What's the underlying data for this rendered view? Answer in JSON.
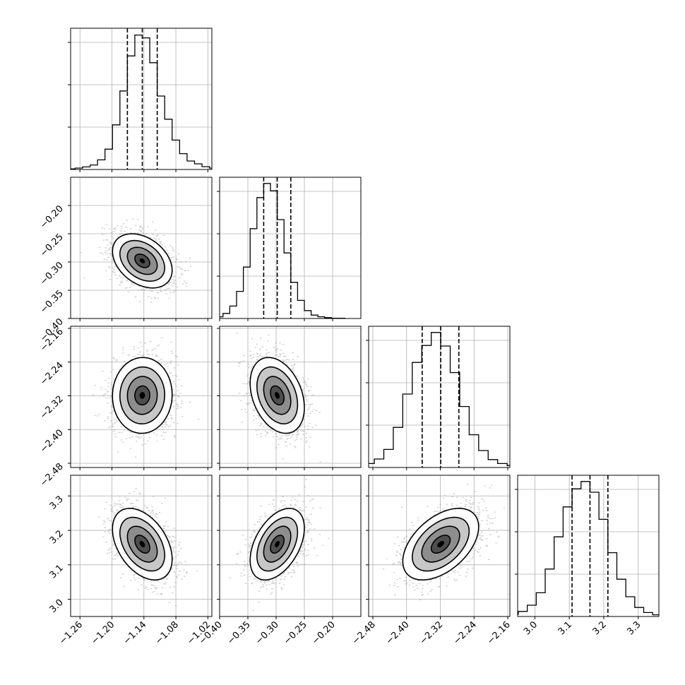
{
  "chart_data": {
    "type": "corner",
    "title": "",
    "parameters": [
      {
        "range": [
          -1.2775,
          -1.0125
        ],
        "ticks": [
          "−1.26",
          "−1.20",
          "−1.14",
          "−1.08",
          "−1.02"
        ],
        "tick_values": [
          -1.26,
          -1.2,
          -1.14,
          -1.08,
          -1.02
        ],
        "mean": -1.143,
        "sd": 0.028,
        "quantiles": [
          -1.171,
          -1.143,
          -1.115
        ],
        "histogram": [
          2,
          5,
          9,
          16,
          34,
          72,
          158,
          278,
          402,
          476,
          466,
          378,
          260,
          178,
          104,
          56,
          30,
          20,
          10,
          5
        ]
      },
      {
        "range": [
          -0.4,
          -0.15
        ],
        "ticks": [
          "−0.40",
          "−0.35",
          "−0.30",
          "−0.25",
          "−0.20"
        ],
        "tick_values": [
          -0.4,
          -0.35,
          -0.3,
          -0.25,
          -0.2
        ],
        "mean": -0.298,
        "sd": 0.024,
        "quantiles": [
          -0.322,
          -0.298,
          -0.274
        ],
        "histogram": [
          2,
          6,
          18,
          44,
          96,
          182,
          318,
          428,
          478,
          452,
          350,
          232,
          128,
          64,
          28,
          12,
          6,
          3,
          1,
          1
        ]
      },
      {
        "range": [
          -2.49,
          -2.155
        ],
        "ticks": [
          "−2.48",
          "−2.40",
          "−2.32",
          "−2.24",
          "−2.16"
        ],
        "tick_values": [
          -2.48,
          -2.4,
          -2.32,
          -2.24,
          -2.16
        ],
        "mean": -2.319,
        "sd": 0.045,
        "quantiles": [
          -2.363,
          -2.319,
          -2.276
        ],
        "histogram": [
          3,
          7,
          14,
          30,
          64,
          142,
          260,
          372,
          432,
          478,
          430,
          336,
          216,
          116,
          60,
          28,
          14,
          7,
          3,
          1
        ]
      },
      {
        "range": [
          2.95,
          3.36
        ],
        "ticks": [
          "3.0",
          "3.1",
          "3.2",
          "3.3"
        ],
        "tick_values": [
          3.0,
          3.1,
          3.2,
          3.3
        ],
        "mean": 3.16,
        "sd": 0.052,
        "quantiles": [
          3.108,
          3.16,
          3.212
        ],
        "histogram": [
          3,
          8,
          18,
          40,
          84,
          168,
          282,
          388,
          452,
          478,
          440,
          344,
          226,
          132,
          70,
          32,
          14,
          6,
          2,
          1
        ]
      }
    ],
    "correlations": {
      "1,0": -0.35,
      "2,0": 0.02,
      "2,1": -0.32,
      "3,0": -0.42,
      "3,1": 0.45,
      "3,2": 0.48
    },
    "hist_y_max": 500,
    "hist_y_ticks": [
      150,
      300,
      450
    ],
    "contour_levels": [
      0.5,
      1.0,
      1.5,
      2.0
    ],
    "quantile_lines": "dashed",
    "grid": true,
    "legend": "none"
  }
}
